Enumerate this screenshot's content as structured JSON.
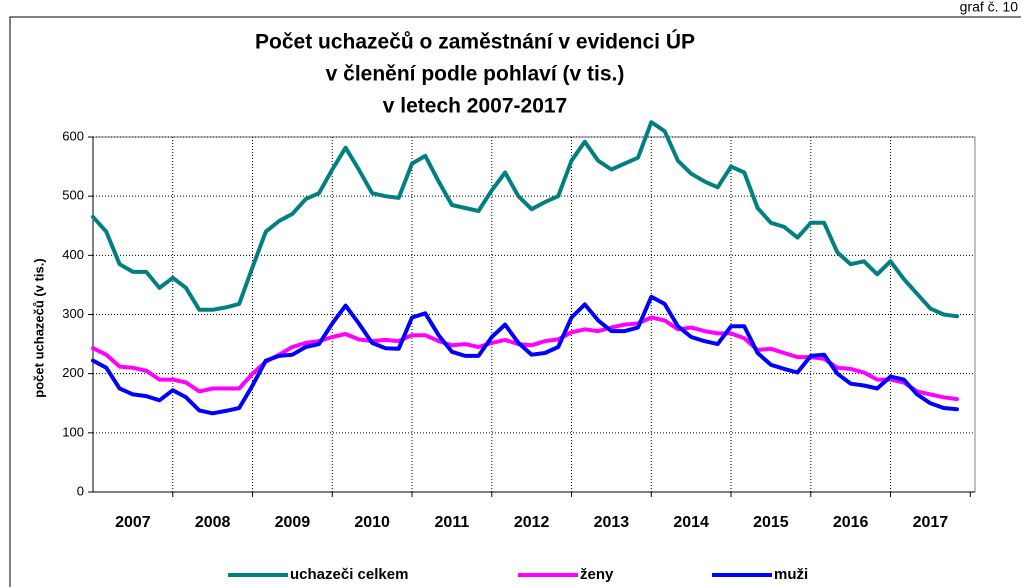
{
  "chart_data": {
    "type": "line",
    "caption": "graf č. 10",
    "title": [
      "Počet uchazečů o zaměstnání v evidenci ÚP",
      "v členění podle pohlaví (v tis.)",
      "v letech 2007-2017"
    ],
    "ylabel": "počet uchazečů (v tis.)",
    "categories": [
      null,
      null,
      null,
      "2007",
      null,
      null,
      null,
      null,
      null,
      "2008",
      null,
      null,
      null,
      null,
      null,
      "2009",
      null,
      null,
      null,
      null,
      null,
      "2010",
      null,
      null,
      null,
      null,
      null,
      "2011",
      null,
      null,
      null,
      null,
      null,
      "2012",
      null,
      null,
      null,
      null,
      null,
      "2013",
      null,
      null,
      null,
      null,
      null,
      "2014",
      null,
      null,
      null,
      null,
      null,
      "2015",
      null,
      null,
      null,
      null,
      null,
      "2016",
      null,
      null,
      null,
      null,
      null,
      "2017",
      null,
      null
    ],
    "ylim": [
      0,
      600
    ],
    "yticks": [
      0,
      100,
      200,
      300,
      400,
      500,
      600
    ],
    "grid": true,
    "legend": "bottom",
    "series": [
      {
        "name": "uchazeči celkem",
        "color": "#008080",
        "values": [
          465,
          440,
          385,
          372,
          372,
          345,
          362,
          345,
          308,
          308,
          312,
          318,
          380,
          440,
          458,
          470,
          495,
          505,
          545,
          582,
          545,
          505,
          500,
          497,
          555,
          568,
          525,
          485,
          480,
          475,
          510,
          540,
          500,
          478,
          490,
          500,
          560,
          592,
          560,
          545,
          555,
          565,
          625,
          610,
          560,
          538,
          525,
          515,
          550,
          540,
          480,
          455,
          448,
          430,
          455,
          455,
          405,
          385,
          390,
          368,
          390,
          360,
          335,
          310,
          300,
          297
        ]
      },
      {
        "name": "ženy",
        "color": "#ff00ff",
        "values": [
          243,
          232,
          212,
          210,
          205,
          190,
          190,
          185,
          170,
          175,
          175,
          175,
          200,
          220,
          232,
          245,
          252,
          255,
          262,
          267,
          258,
          255,
          257,
          255,
          265,
          265,
          255,
          248,
          250,
          245,
          252,
          257,
          250,
          248,
          255,
          258,
          270,
          275,
          272,
          278,
          283,
          285,
          295,
          290,
          275,
          278,
          272,
          268,
          268,
          260,
          240,
          242,
          235,
          228,
          228,
          225,
          210,
          208,
          202,
          190,
          190,
          185,
          170,
          165,
          160,
          157
        ]
      },
      {
        "name": "muži",
        "color": "#0000ff",
        "values": [
          222,
          210,
          175,
          165,
          162,
          155,
          172,
          160,
          138,
          133,
          137,
          142,
          180,
          222,
          230,
          232,
          245,
          250,
          285,
          315,
          285,
          252,
          243,
          242,
          295,
          302,
          265,
          237,
          230,
          230,
          262,
          283,
          252,
          232,
          235,
          245,
          295,
          317,
          290,
          272,
          272,
          278,
          330,
          318,
          280,
          262,
          255,
          250,
          280,
          280,
          235,
          215,
          208,
          202,
          230,
          232,
          200,
          183,
          180,
          175,
          195,
          190,
          165,
          150,
          142,
          140
        ]
      }
    ]
  }
}
